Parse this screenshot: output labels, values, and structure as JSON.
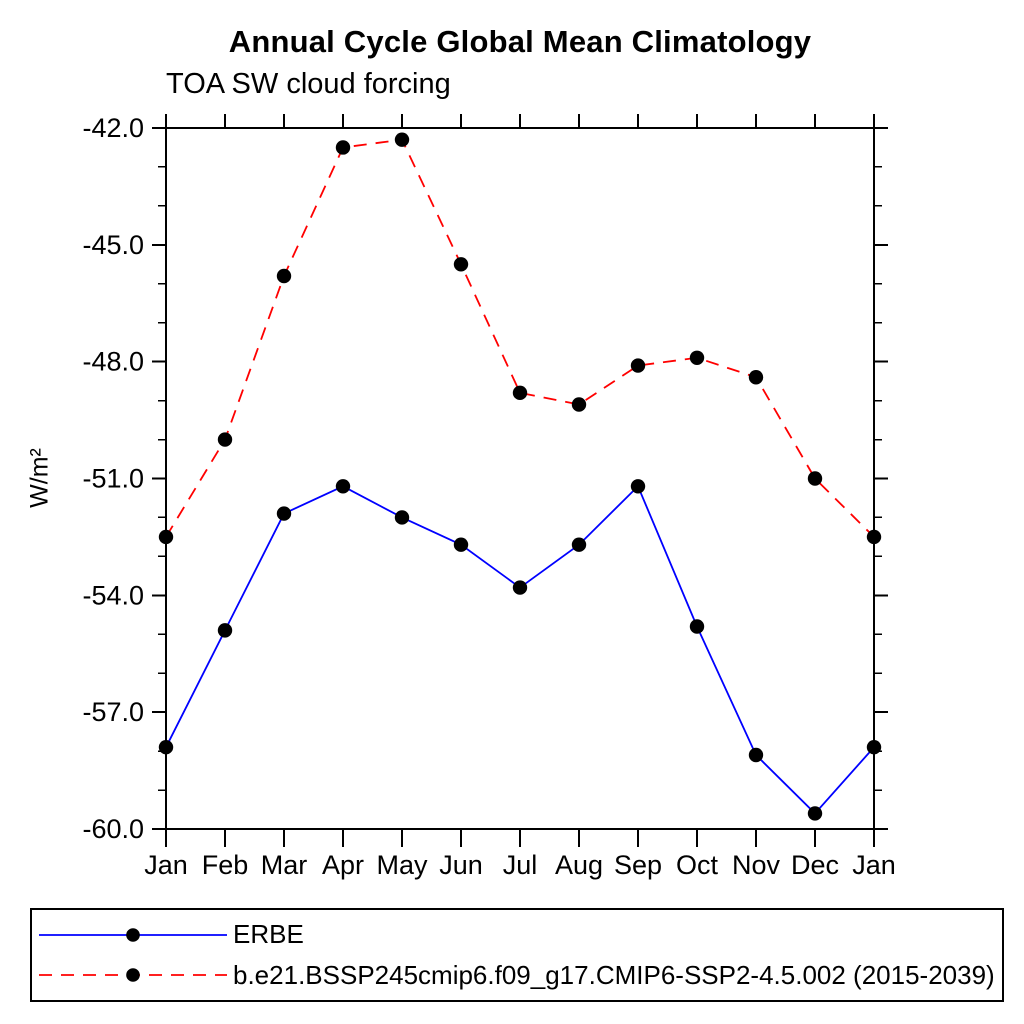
{
  "page": {
    "background": "#ffffff"
  },
  "chart": {
    "title": "Annual Cycle Global Mean Climatology",
    "subtitle": "TOA SW cloud forcing",
    "ylabel": "W/m²"
  },
  "legend": {
    "items": [
      {
        "label": "ERBE",
        "color": "#0000ff",
        "style": "solid",
        "marker": "black-dot"
      },
      {
        "label": "b.e21.BSSP245cmip6.f09_g17.CMIP6-SSP2-4.5.002 (2015-2039)",
        "color": "#ff0000",
        "style": "dashed",
        "marker": "black-dot"
      }
    ]
  },
  "chart_data": {
    "type": "line",
    "title": "Annual Cycle Global Mean Climatology",
    "subtitle": "TOA SW cloud forcing",
    "xlabel": "",
    "ylabel": "W/m²",
    "categories": [
      "Jan",
      "Feb",
      "Mar",
      "Apr",
      "May",
      "Jun",
      "Jul",
      "Aug",
      "Sep",
      "Oct",
      "Nov",
      "Dec",
      "Jan"
    ],
    "series": [
      {
        "name": "ERBE",
        "color": "#0000ff",
        "line_style": "solid",
        "marker": "circle",
        "marker_color": "#000000",
        "values": [
          -57.9,
          -54.9,
          -51.9,
          -51.2,
          -52.0,
          -52.7,
          -53.8,
          -52.7,
          -51.2,
          -54.8,
          -58.1,
          -59.6,
          -57.9
        ]
      },
      {
        "name": "b.e21.BSSP245cmip6.f09_g17.CMIP6-SSP2-4.5.002 (2015-2039)",
        "color": "#ff0000",
        "line_style": "dashed",
        "marker": "circle",
        "marker_color": "#000000",
        "values": [
          -52.5,
          -50.0,
          -45.8,
          -42.5,
          -42.3,
          -45.5,
          -48.8,
          -49.1,
          -48.1,
          -47.9,
          -48.4,
          -51.0,
          -52.5
        ]
      }
    ],
    "ylim": [
      -60.0,
      -42.0
    ],
    "ytick_major_step": 3.0,
    "ytick_minor_step": 1.0,
    "ytick_labels": [
      "-42.0",
      "-45.0",
      "-48.0",
      "-51.0",
      "-54.0",
      "-57.0",
      "-60.0"
    ],
    "grid": false,
    "legend_position": "bottom",
    "axis_color": "#000000",
    "text_color": "#000000"
  }
}
